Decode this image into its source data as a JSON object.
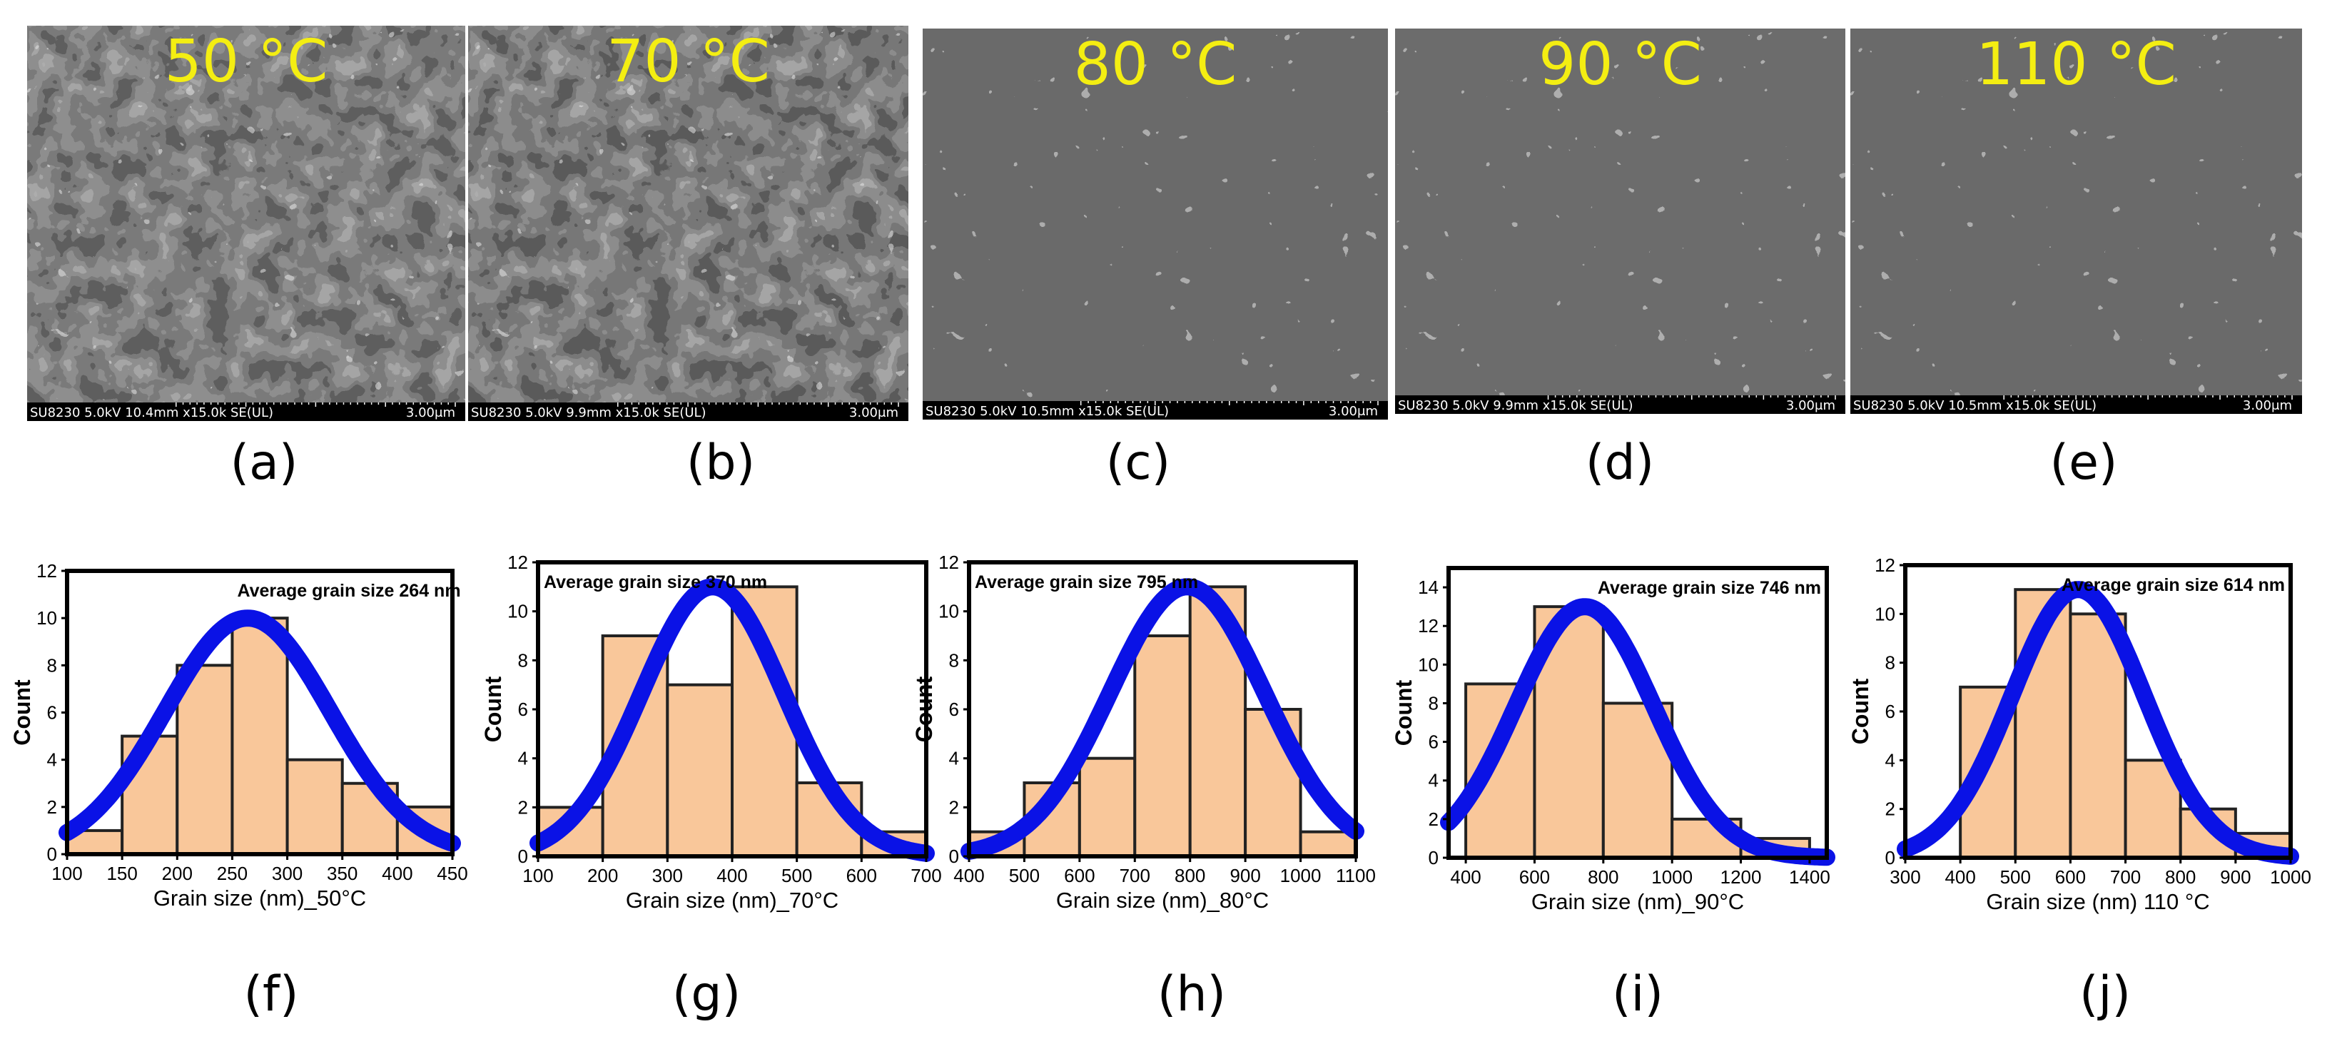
{
  "sem_panels": [
    {
      "label": "(a)",
      "temperature": "50 °C",
      "info": "SU8230 5.0kV 10.4mm x15.0k SE(UL)",
      "scale": "3.00μm"
    },
    {
      "label": "(b)",
      "temperature": "70 °C",
      "info": "SU8230 5.0kV 9.9mm x15.0k SE(UL)",
      "scale": "3.00μm"
    },
    {
      "label": "(c)",
      "temperature": "80 °C",
      "info": "SU8230 5.0kV 10.5mm x15.0k SE(UL)",
      "scale": "3.00μm"
    },
    {
      "label": "(d)",
      "temperature": "90 °C",
      "info": "SU8230 5.0kV 9.9mm x15.0k SE(UL)",
      "scale": "3.00μm"
    },
    {
      "label": "(e)",
      "temperature": "110 °C",
      "info": "SU8230 5.0kV 10.5mm x15.0k SE(UL)",
      "scale": "3.00μm"
    }
  ],
  "hist_labels": [
    "(f)",
    "(g)",
    "(h)",
    "(i)",
    "(j)"
  ],
  "colors": {
    "bar_fill": "#f9c79a",
    "bar_edge": "#222222",
    "fit_curve": "#0a12e6",
    "temperature_text": "#f4ee12"
  },
  "chart_data": [
    {
      "type": "bar",
      "title": "Average grain size 264 nm",
      "xlabel": "Grain size (nm)_50°C",
      "ylabel": "Count",
      "xlim": [
        100,
        450
      ],
      "ylim": [
        0,
        12
      ],
      "xticks": [
        100,
        150,
        200,
        250,
        300,
        350,
        400,
        450
      ],
      "yticks": [
        0,
        2,
        4,
        6,
        8,
        10,
        12
      ],
      "bins": [
        [
          100,
          150
        ],
        [
          150,
          200
        ],
        [
          200,
          250
        ],
        [
          250,
          300
        ],
        [
          300,
          350
        ],
        [
          350,
          400
        ],
        [
          400,
          450
        ]
      ],
      "values": [
        1,
        5,
        8,
        10,
        4,
        3,
        2
      ],
      "fit": {
        "type": "gaussian",
        "mean": 264,
        "sigma": 75,
        "peak": 10
      }
    },
    {
      "type": "bar",
      "title": "Average grain size 370 nm",
      "xlabel": "Grain size (nm)_70°C",
      "ylabel": "Count",
      "xlim": [
        100,
        700
      ],
      "ylim": [
        0,
        12
      ],
      "xticks": [
        100,
        200,
        300,
        400,
        500,
        600,
        700
      ],
      "yticks": [
        0,
        2,
        4,
        6,
        8,
        10,
        12
      ],
      "bins": [
        [
          100,
          200
        ],
        [
          200,
          300
        ],
        [
          300,
          400
        ],
        [
          400,
          500
        ],
        [
          500,
          600
        ],
        [
          600,
          700
        ]
      ],
      "values": [
        2,
        9,
        7,
        11,
        3,
        1
      ],
      "fit": {
        "type": "gaussian",
        "mean": 370,
        "sigma": 110,
        "peak": 11
      }
    },
    {
      "type": "bar",
      "title": "Average grain size 795 nm",
      "xlabel": "Grain size (nm)_80°C",
      "ylabel": "Count",
      "xlim": [
        400,
        1100
      ],
      "ylim": [
        0,
        12
      ],
      "xticks": [
        400,
        500,
        600,
        700,
        800,
        900,
        1000,
        1100
      ],
      "yticks": [
        0,
        2,
        4,
        6,
        8,
        10,
        12
      ],
      "bins": [
        [
          400,
          500
        ],
        [
          500,
          600
        ],
        [
          600,
          700
        ],
        [
          700,
          800
        ],
        [
          800,
          900
        ],
        [
          900,
          1000
        ],
        [
          1000,
          1100
        ]
      ],
      "values": [
        1,
        3,
        4,
        9,
        11,
        6,
        1
      ],
      "fit": {
        "type": "gaussian",
        "mean": 795,
        "sigma": 140,
        "peak": 11
      }
    },
    {
      "type": "bar",
      "title": "Average grain size 746 nm",
      "xlabel": "Grain size (nm)_90°C",
      "ylabel": "Count",
      "xlim": [
        350,
        1450
      ],
      "ylim": [
        0,
        15
      ],
      "xticks": [
        400,
        600,
        800,
        1000,
        1200,
        1400
      ],
      "yticks": [
        0,
        2,
        4,
        6,
        8,
        10,
        12,
        14
      ],
      "bins": [
        [
          400,
          600
        ],
        [
          600,
          800
        ],
        [
          800,
          1000
        ],
        [
          1000,
          1200
        ],
        [
          1200,
          1400
        ]
      ],
      "values": [
        9,
        13,
        8,
        2,
        1
      ],
      "fit": {
        "type": "gaussian",
        "mean": 746,
        "sigma": 200,
        "peak": 13
      }
    },
    {
      "type": "bar",
      "title": "Average grain size 614 nm",
      "xlabel": "Grain size (nm)  110 °C",
      "ylabel": "Count",
      "xlim": [
        300,
        1000
      ],
      "ylim": [
        0,
        12
      ],
      "xticks": [
        300,
        400,
        500,
        600,
        700,
        800,
        900,
        1000
      ],
      "yticks": [
        0,
        2,
        4,
        6,
        8,
        10,
        12
      ],
      "bins": [
        [
          400,
          500
        ],
        [
          500,
          600
        ],
        [
          600,
          700
        ],
        [
          700,
          800
        ],
        [
          800,
          900
        ],
        [
          900,
          1000
        ]
      ],
      "values": [
        7,
        11,
        10,
        4,
        2,
        1
      ],
      "fit": {
        "type": "gaussian",
        "mean": 614,
        "sigma": 120,
        "peak": 11
      }
    }
  ]
}
